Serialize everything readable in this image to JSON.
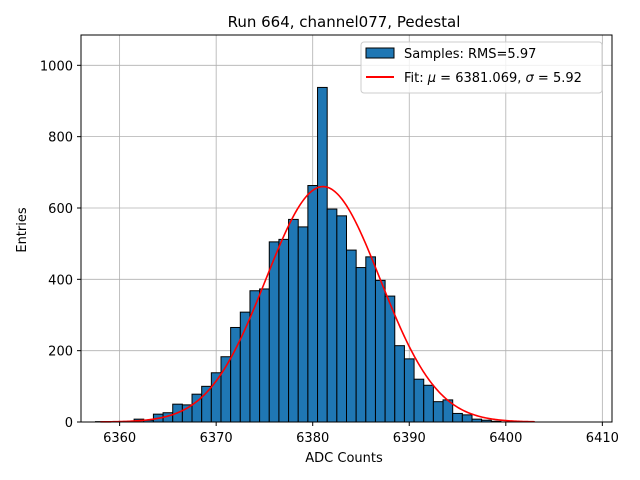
{
  "chart_data": {
    "type": "bar",
    "title": "Run 664, channel077, Pedestal",
    "xlabel": "ADC Counts",
    "ylabel": "Entries",
    "xlim": [
      6356,
      6411
    ],
    "ylim": [
      0,
      1085
    ],
    "xticks": [
      6360,
      6370,
      6380,
      6390,
      6400,
      6410
    ],
    "yticks": [
      0,
      200,
      400,
      600,
      800,
      1000
    ],
    "grid": true,
    "legend_position": "top-right",
    "bin_width": 1,
    "bins": [
      {
        "x": 6358,
        "y": 1
      },
      {
        "x": 6359,
        "y": 0
      },
      {
        "x": 6360,
        "y": 0
      },
      {
        "x": 6361,
        "y": 1
      },
      {
        "x": 6362,
        "y": 8
      },
      {
        "x": 6363,
        "y": 5
      },
      {
        "x": 6364,
        "y": 22
      },
      {
        "x": 6365,
        "y": 26
      },
      {
        "x": 6366,
        "y": 50
      },
      {
        "x": 6367,
        "y": 48
      },
      {
        "x": 6368,
        "y": 78
      },
      {
        "x": 6369,
        "y": 100
      },
      {
        "x": 6370,
        "y": 138
      },
      {
        "x": 6371,
        "y": 183
      },
      {
        "x": 6372,
        "y": 265
      },
      {
        "x": 6373,
        "y": 308
      },
      {
        "x": 6374,
        "y": 368
      },
      {
        "x": 6375,
        "y": 373
      },
      {
        "x": 6376,
        "y": 505
      },
      {
        "x": 6377,
        "y": 512
      },
      {
        "x": 6378,
        "y": 568
      },
      {
        "x": 6379,
        "y": 547
      },
      {
        "x": 6380,
        "y": 663
      },
      {
        "x": 6381,
        "y": 938
      },
      {
        "x": 6382,
        "y": 597
      },
      {
        "x": 6383,
        "y": 578
      },
      {
        "x": 6384,
        "y": 482
      },
      {
        "x": 6385,
        "y": 433
      },
      {
        "x": 6386,
        "y": 463
      },
      {
        "x": 6387,
        "y": 397
      },
      {
        "x": 6388,
        "y": 353
      },
      {
        "x": 6389,
        "y": 214
      },
      {
        "x": 6390,
        "y": 177
      },
      {
        "x": 6391,
        "y": 120
      },
      {
        "x": 6392,
        "y": 103
      },
      {
        "x": 6393,
        "y": 57
      },
      {
        "x": 6394,
        "y": 62
      },
      {
        "x": 6395,
        "y": 24
      },
      {
        "x": 6396,
        "y": 20
      },
      {
        "x": 6397,
        "y": 8
      },
      {
        "x": 6398,
        "y": 5
      },
      {
        "x": 6399,
        "y": 2
      },
      {
        "x": 6400,
        "y": 0
      },
      {
        "x": 6401,
        "y": 1
      }
    ],
    "fit": {
      "mu": 6381.069,
      "sigma": 5.92,
      "amplitude": 660,
      "x_range": [
        6358,
        6403
      ]
    },
    "series": [
      {
        "name": "Samples: RMS=5.97",
        "kind": "histogram",
        "color": "#1f77b4",
        "edge_color": "#000000"
      },
      {
        "name_prefix": "Fit: ",
        "mu_text": "6381.069",
        "sigma_text": "5.92",
        "kind": "line",
        "color": "#ff0000"
      }
    ]
  }
}
